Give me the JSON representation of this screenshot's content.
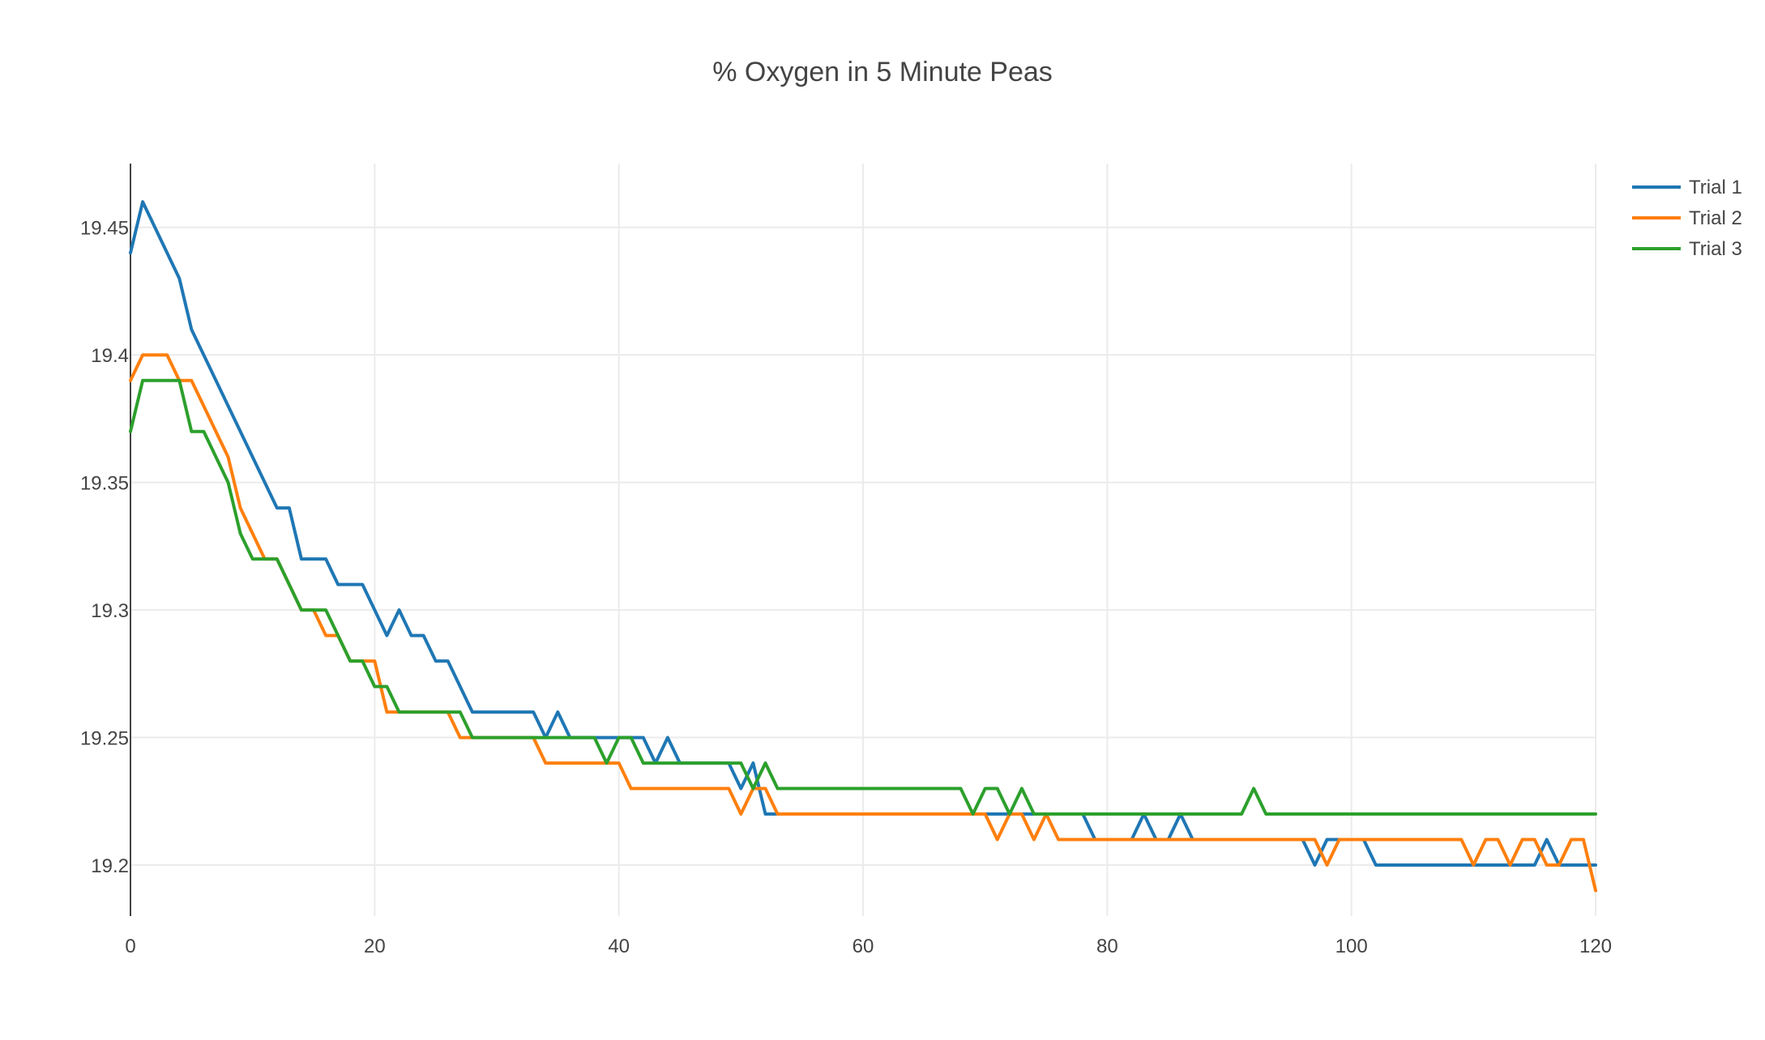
{
  "chart_data": {
    "type": "line",
    "title": "% Oxygen in 5 Minute Peas",
    "xlabel": "",
    "ylabel": "",
    "xlim": [
      0,
      120
    ],
    "ylim": [
      19.18,
      19.475
    ],
    "x_ticks": [
      "0",
      "20",
      "40",
      "60",
      "80",
      "100",
      "120"
    ],
    "y_ticks": [
      "19.2",
      "19.25",
      "19.3",
      "19.35",
      "19.4",
      "19.45"
    ],
    "grid": true,
    "legend": "top-right",
    "series": [
      {
        "name": "Trial 1",
        "color": "#1f77b4",
        "points": [
          [
            0,
            19.44
          ],
          [
            1,
            19.46
          ],
          [
            4,
            19.43
          ],
          [
            5,
            19.41
          ],
          [
            12,
            19.34
          ],
          [
            13,
            19.34
          ],
          [
            14,
            19.32
          ],
          [
            16,
            19.32
          ],
          [
            17,
            19.31
          ],
          [
            19,
            19.31
          ],
          [
            21,
            19.29
          ],
          [
            22,
            19.3
          ],
          [
            23,
            19.29
          ],
          [
            24,
            19.29
          ],
          [
            25,
            19.28
          ],
          [
            26,
            19.28
          ],
          [
            28,
            19.26
          ],
          [
            33,
            19.26
          ],
          [
            34,
            19.25
          ],
          [
            35,
            19.26
          ],
          [
            36,
            19.25
          ],
          [
            42,
            19.25
          ],
          [
            43,
            19.24
          ],
          [
            44,
            19.25
          ],
          [
            45,
            19.24
          ],
          [
            49,
            19.24
          ],
          [
            50,
            19.23
          ],
          [
            51,
            19.24
          ],
          [
            52,
            19.22
          ],
          [
            69,
            19.22
          ],
          [
            70,
            19.22
          ],
          [
            72,
            19.22
          ],
          [
            73,
            19.22
          ],
          [
            74,
            19.22
          ],
          [
            78,
            19.22
          ],
          [
            79,
            19.21
          ],
          [
            82,
            19.21
          ],
          [
            83,
            19.22
          ],
          [
            84,
            19.21
          ],
          [
            85,
            19.21
          ],
          [
            86,
            19.22
          ],
          [
            87,
            19.21
          ],
          [
            96,
            19.21
          ],
          [
            97,
            19.2
          ],
          [
            98,
            19.21
          ],
          [
            101,
            19.21
          ],
          [
            102,
            19.2
          ],
          [
            115,
            19.2
          ],
          [
            116,
            19.21
          ],
          [
            117,
            19.2
          ],
          [
            120,
            19.2
          ]
        ]
      },
      {
        "name": "Trial 2",
        "color": "#ff7f0e",
        "points": [
          [
            0,
            19.39
          ],
          [
            1,
            19.4
          ],
          [
            3,
            19.4
          ],
          [
            4,
            19.39
          ],
          [
            5,
            19.39
          ],
          [
            8,
            19.36
          ],
          [
            9,
            19.34
          ],
          [
            11,
            19.32
          ],
          [
            12,
            19.32
          ],
          [
            14,
            19.3
          ],
          [
            15,
            19.3
          ],
          [
            16,
            19.29
          ],
          [
            17,
            19.29
          ],
          [
            18,
            19.28
          ],
          [
            20,
            19.28
          ],
          [
            21,
            19.26
          ],
          [
            26,
            19.26
          ],
          [
            27,
            19.25
          ],
          [
            33,
            19.25
          ],
          [
            34,
            19.24
          ],
          [
            40,
            19.24
          ],
          [
            41,
            19.23
          ],
          [
            49,
            19.23
          ],
          [
            50,
            19.22
          ],
          [
            51,
            19.23
          ],
          [
            52,
            19.23
          ],
          [
            53,
            19.22
          ],
          [
            70,
            19.22
          ],
          [
            71,
            19.21
          ],
          [
            72,
            19.22
          ],
          [
            73,
            19.22
          ],
          [
            74,
            19.21
          ],
          [
            75,
            19.22
          ],
          [
            76,
            19.21
          ],
          [
            97,
            19.21
          ],
          [
            98,
            19.2
          ],
          [
            99,
            19.21
          ],
          [
            109,
            19.21
          ],
          [
            110,
            19.2
          ],
          [
            111,
            19.21
          ],
          [
            112,
            19.21
          ],
          [
            113,
            19.2
          ],
          [
            114,
            19.21
          ],
          [
            115,
            19.21
          ],
          [
            116,
            19.2
          ],
          [
            117,
            19.2
          ],
          [
            118,
            19.21
          ],
          [
            119,
            19.21
          ],
          [
            120,
            19.19
          ]
        ]
      },
      {
        "name": "Trial 3",
        "color": "#2ca02c",
        "points": [
          [
            0,
            19.37
          ],
          [
            1,
            19.39
          ],
          [
            4,
            19.39
          ],
          [
            5,
            19.37
          ],
          [
            6,
            19.37
          ],
          [
            8,
            19.35
          ],
          [
            9,
            19.33
          ],
          [
            10,
            19.32
          ],
          [
            12,
            19.32
          ],
          [
            14,
            19.3
          ],
          [
            16,
            19.3
          ],
          [
            18,
            19.28
          ],
          [
            19,
            19.28
          ],
          [
            20,
            19.27
          ],
          [
            21,
            19.27
          ],
          [
            22,
            19.26
          ],
          [
            27,
            19.26
          ],
          [
            28,
            19.25
          ],
          [
            38,
            19.25
          ],
          [
            39,
            19.24
          ],
          [
            40,
            19.25
          ],
          [
            41,
            19.25
          ],
          [
            42,
            19.24
          ],
          [
            50,
            19.24
          ],
          [
            51,
            19.23
          ],
          [
            52,
            19.24
          ],
          [
            53,
            19.23
          ],
          [
            68,
            19.23
          ],
          [
            69,
            19.22
          ],
          [
            70,
            19.23
          ],
          [
            71,
            19.23
          ],
          [
            72,
            19.22
          ],
          [
            73,
            19.23
          ],
          [
            74,
            19.22
          ],
          [
            91,
            19.22
          ],
          [
            92,
            19.23
          ],
          [
            93,
            19.22
          ],
          [
            120,
            19.22
          ]
        ]
      }
    ]
  }
}
